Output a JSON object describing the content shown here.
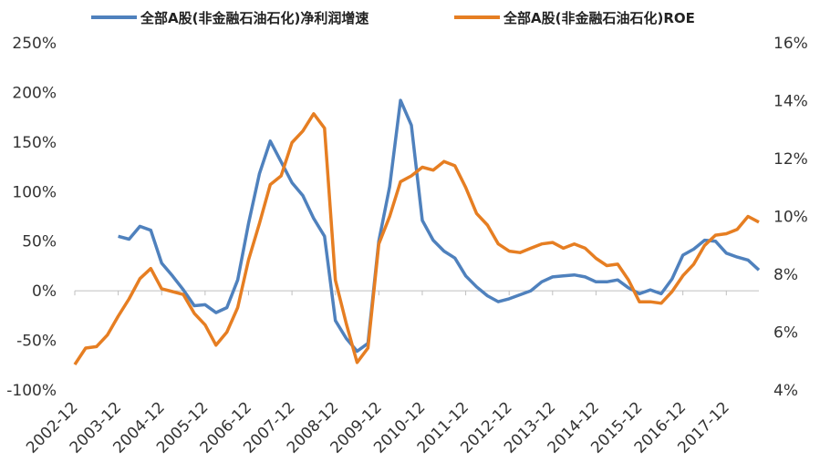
{
  "chart_data": {
    "type": "line",
    "categories": [
      "2002-12",
      null,
      null,
      null,
      "2003-12",
      null,
      null,
      null,
      "2004-12",
      null,
      null,
      null,
      "2005-12",
      null,
      null,
      null,
      "2006-12",
      null,
      null,
      null,
      "2007-12",
      null,
      null,
      null,
      "2008-12",
      null,
      null,
      null,
      "2009-12",
      null,
      null,
      null,
      "2010-12",
      null,
      null,
      null,
      "2011-12",
      null,
      null,
      null,
      "2012-12",
      null,
      null,
      null,
      "2013-12",
      null,
      null,
      null,
      "2014-12",
      null,
      null,
      null,
      "2015-12",
      null,
      null,
      null,
      "2016-12",
      null,
      null,
      null,
      "2017-12",
      null,
      null,
      null
    ],
    "series": [
      {
        "name": "全部A股(非金融石油石化)净利润增速",
        "color": "#4f81bd",
        "values": [
          null,
          null,
          null,
          null,
          55,
          52,
          65,
          61,
          28,
          15,
          1,
          -15,
          -14,
          -22,
          -17,
          11,
          68,
          118,
          151,
          130,
          109,
          96,
          73,
          55,
          -30,
          -48,
          -61,
          -53,
          50,
          105,
          192,
          167,
          71,
          51,
          40,
          33,
          15,
          4,
          -5,
          -11,
          -8,
          -4,
          0,
          9,
          14,
          15,
          16,
          14,
          9,
          9,
          11,
          3,
          -3,
          1,
          -3,
          12,
          36,
          42,
          51,
          50,
          38,
          34,
          31,
          21
        ]
      },
      {
        "name": "全部A股(非金融石油石化)ROE",
        "color": "#e67e22",
        "axis": "y2",
        "values": [
          4.88,
          5.45,
          5.5,
          5.9,
          6.55,
          7.15,
          7.85,
          8.2,
          7.5,
          7.4,
          7.3,
          6.65,
          6.25,
          5.55,
          6.0,
          6.85,
          8.5,
          9.75,
          11.1,
          11.4,
          12.55,
          12.95,
          13.55,
          13.05,
          7.8,
          6.3,
          4.95,
          5.45,
          9.05,
          10.0,
          11.2,
          11.4,
          11.7,
          11.6,
          11.9,
          11.75,
          11.0,
          10.1,
          9.7,
          9.05,
          8.8,
          8.75,
          8.9,
          9.05,
          9.1,
          8.9,
          9.05,
          8.9,
          8.55,
          8.3,
          8.35,
          7.8,
          7.05,
          7.05,
          7.0,
          7.4,
          7.95,
          8.35,
          9.0,
          9.35,
          9.4,
          9.55,
          10.0,
          9.8
        ]
      }
    ],
    "ylim": [
      -100,
      250
    ],
    "yticks": [
      {
        "value": -100,
        "label": "-100%"
      },
      {
        "value": -50,
        "label": "-50%"
      },
      {
        "value": 0,
        "label": "0%"
      },
      {
        "value": 50,
        "label": "50%"
      },
      {
        "value": 100,
        "label": "100%"
      },
      {
        "value": 150,
        "label": "150%"
      },
      {
        "value": 200,
        "label": "200%"
      },
      {
        "value": 250,
        "label": "250%"
      }
    ],
    "y2lim": [
      4,
      16
    ],
    "y2ticks": [
      {
        "value": 4,
        "label": "4%"
      },
      {
        "value": 6,
        "label": "6%"
      },
      {
        "value": 8,
        "label": "8%"
      },
      {
        "value": 10,
        "label": "10%"
      },
      {
        "value": 12,
        "label": "12%"
      },
      {
        "value": 14,
        "label": "14%"
      },
      {
        "value": 16,
        "label": "16%"
      }
    ],
    "grid": false,
    "legend": "top"
  }
}
